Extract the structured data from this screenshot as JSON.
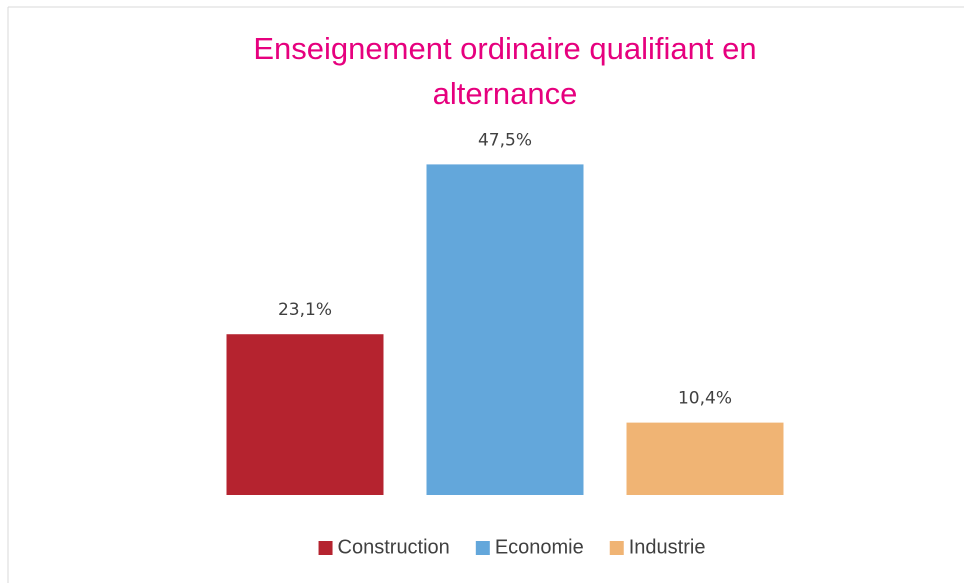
{
  "chart_data": {
    "type": "bar",
    "title": [
      "Enseignement ordinaire qualifiant en",
      "alternance"
    ],
    "categories": [
      null
    ],
    "series": [
      {
        "name": "Construction",
        "color": "#b5232f",
        "values": [
          23.1
        ],
        "value_labels": [
          "23,1%"
        ]
      },
      {
        "name": "Economie",
        "color": "#63a7db",
        "values": [
          47.5
        ],
        "value_labels": [
          "47,5%"
        ]
      },
      {
        "name": "Industrie",
        "color": "#f0b474",
        "values": [
          10.4
        ],
        "value_labels": [
          "10,4%"
        ]
      }
    ],
    "ylim": [
      0,
      50
    ],
    "grid": false,
    "legend": "bottom"
  }
}
